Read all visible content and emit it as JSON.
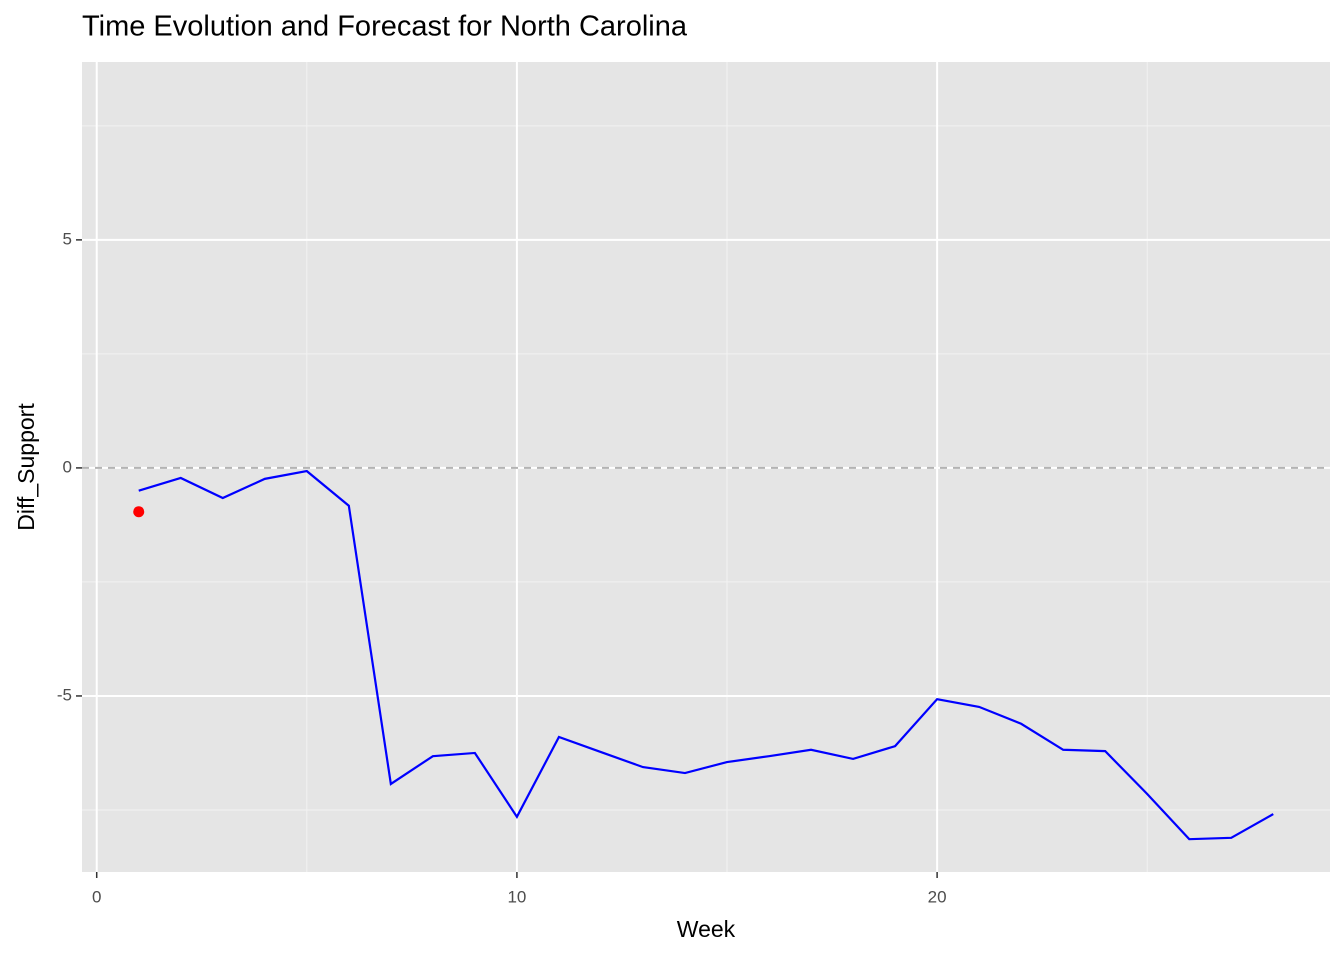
{
  "chart_data": {
    "type": "line",
    "title": "Time Evolution and Forecast for North Carolina",
    "x_label": "Week",
    "y_label": "Diff_Support",
    "x": [
      1,
      2,
      3,
      4,
      5,
      6,
      7,
      8,
      9,
      10,
      11,
      12,
      13,
      14,
      15,
      16,
      17,
      18,
      19,
      20,
      21,
      22,
      23,
      24,
      25,
      26,
      27,
      28
    ],
    "series": [
      {
        "type": "line",
        "color": "#0000ff",
        "values": [
          -0.5,
          -0.22,
          -0.66,
          -0.24,
          -0.07,
          -0.83,
          -6.93,
          -6.32,
          -6.25,
          -7.65,
          -5.9,
          -6.23,
          -6.56,
          -6.69,
          -6.45,
          -6.32,
          -6.18,
          -6.38,
          -6.1,
          -5.07,
          -5.24,
          -5.61,
          -6.18,
          -6.21,
          -7.15,
          -8.14,
          -8.11,
          -7.59
        ]
      },
      {
        "type": "point",
        "color": "#ff0000",
        "x": [
          1
        ],
        "values": [
          -0.96
        ]
      }
    ],
    "reference_line": 0,
    "xlim": [
      -0.35,
      29.35
    ],
    "xticks": [
      0,
      10,
      20
    ],
    "ylim": [
      -8.86,
      8.9
    ],
    "yticks": [
      -5,
      0,
      5
    ],
    "grid": true
  }
}
